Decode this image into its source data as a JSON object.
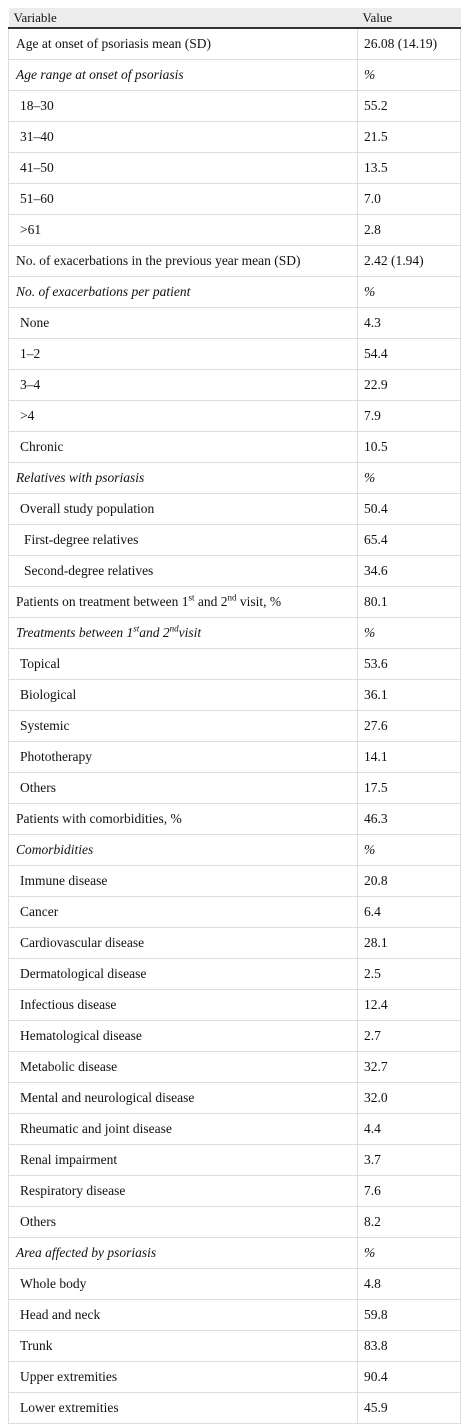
{
  "table": {
    "header": [
      "Variable",
      "Value"
    ],
    "rows": [
      {
        "label": [
          "Age at onset of psoriasis mean (SD)"
        ],
        "value": "26.08 (14.19)",
        "level": 0
      },
      {
        "label": [
          "Age range at onset of psoriasis"
        ],
        "value": "%",
        "level": 0,
        "italic": true
      },
      {
        "label": [
          "18–30"
        ],
        "value": "55.2",
        "level": 1
      },
      {
        "label": [
          "31–40"
        ],
        "value": "21.5",
        "level": 1
      },
      {
        "label": [
          "41–50"
        ],
        "value": "13.5",
        "level": 1
      },
      {
        "label": [
          "51–60"
        ],
        "value": "7.0",
        "level": 1
      },
      {
        "label": [
          ">61"
        ],
        "value": "2.8",
        "level": 1
      },
      {
        "label": [
          "No. of exacerbations in the previous year mean (SD)"
        ],
        "value": "2.42 (1.94)",
        "level": 0
      },
      {
        "label": [
          "No. of exacerbations per patient"
        ],
        "value": "%",
        "level": 0,
        "italic": true
      },
      {
        "label": [
          "None"
        ],
        "value": "4.3",
        "level": 1
      },
      {
        "label": [
          "1–2"
        ],
        "value": "54.4",
        "level": 1
      },
      {
        "label": [
          "3–4"
        ],
        "value": "22.9",
        "level": 1
      },
      {
        "label": [
          ">4"
        ],
        "value": "7.9",
        "level": 1
      },
      {
        "label": [
          "Chronic"
        ],
        "value": "10.5",
        "level": 1
      },
      {
        "label": [
          "Relatives with psoriasis"
        ],
        "value": "%",
        "level": 0,
        "italic": true
      },
      {
        "label": [
          "Overall study population"
        ],
        "value": "50.4",
        "level": 1
      },
      {
        "label": [
          "First-degree relatives"
        ],
        "value": "65.4",
        "level": 2
      },
      {
        "label": [
          "Second-degree relatives"
        ],
        "value": "34.6",
        "level": 2
      },
      {
        "label": [
          "Patients on treatment between 1",
          "st",
          " and 2",
          "nd",
          " visit, %"
        ],
        "value": "80.1",
        "level": 0
      },
      {
        "label": [
          "Treatments between 1",
          "st",
          "and 2",
          "nd",
          "visit"
        ],
        "value": "%",
        "level": 0,
        "italic": true
      },
      {
        "label": [
          "Topical"
        ],
        "value": "53.6",
        "level": 1
      },
      {
        "label": [
          "Biological"
        ],
        "value": "36.1",
        "level": 1
      },
      {
        "label": [
          "Systemic"
        ],
        "value": "27.6",
        "level": 1
      },
      {
        "label": [
          "Phototherapy"
        ],
        "value": "14.1",
        "level": 1
      },
      {
        "label": [
          "Others"
        ],
        "value": "17.5",
        "level": 1
      },
      {
        "label": [
          "Patients with comorbidities, %"
        ],
        "value": "46.3",
        "level": 0
      },
      {
        "label": [
          "Comorbidities"
        ],
        "value": "%",
        "level": 0,
        "italic": true
      },
      {
        "label": [
          "Immune disease"
        ],
        "value": "20.8",
        "level": 1
      },
      {
        "label": [
          "Cancer"
        ],
        "value": "6.4",
        "level": 1
      },
      {
        "label": [
          "Cardiovascular disease"
        ],
        "value": "28.1",
        "level": 1
      },
      {
        "label": [
          "Dermatological disease"
        ],
        "value": "2.5",
        "level": 1
      },
      {
        "label": [
          "Infectious disease"
        ],
        "value": "12.4",
        "level": 1
      },
      {
        "label": [
          "Hematological disease"
        ],
        "value": "2.7",
        "level": 1
      },
      {
        "label": [
          "Metabolic disease"
        ],
        "value": "32.7",
        "level": 1
      },
      {
        "label": [
          "Mental and neurological disease"
        ],
        "value": "32.0",
        "level": 1
      },
      {
        "label": [
          "Rheumatic and joint disease"
        ],
        "value": "4.4",
        "level": 1
      },
      {
        "label": [
          "Renal impairment"
        ],
        "value": "3.7",
        "level": 1
      },
      {
        "label": [
          "Respiratory disease"
        ],
        "value": "7.6",
        "level": 1
      },
      {
        "label": [
          "Others"
        ],
        "value": "8.2",
        "level": 1
      },
      {
        "label": [
          "Area affected by psoriasis"
        ],
        "value": "%",
        "level": 0,
        "italic": true
      },
      {
        "label": [
          "Whole body"
        ],
        "value": "4.8",
        "level": 1
      },
      {
        "label": [
          "Head and neck"
        ],
        "value": "59.8",
        "level": 1
      },
      {
        "label": [
          "Trunk"
        ],
        "value": "83.8",
        "level": 1
      },
      {
        "label": [
          "Upper extremities"
        ],
        "value": "90.4",
        "level": 1
      },
      {
        "label": [
          "Lower extremities"
        ],
        "value": "45.9",
        "level": 1
      }
    ]
  }
}
